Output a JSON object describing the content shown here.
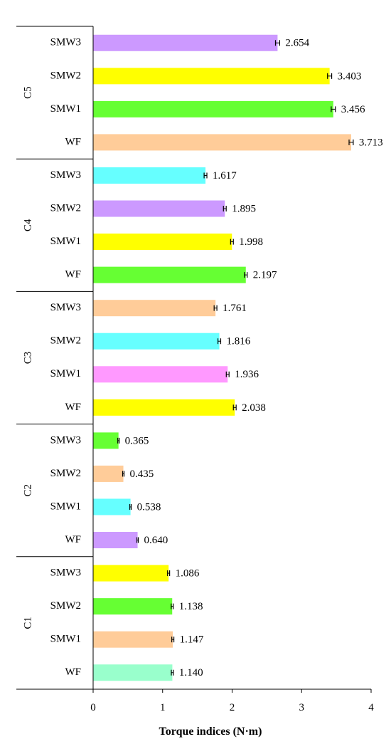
{
  "chart_data": {
    "type": "bar",
    "orientation": "horizontal",
    "xlabel": "Torque indices (N·m)",
    "xlim": [
      0,
      4
    ],
    "xticks": [
      "0",
      "1",
      "2",
      "3",
      "4"
    ],
    "grid": false,
    "groups": [
      {
        "name": "C5",
        "bars": [
          {
            "label": "SMW3",
            "value": 2.654,
            "value_label": "2.654",
            "error": 0.03,
            "color": "#CC99FF"
          },
          {
            "label": "SMW2",
            "value": 3.403,
            "value_label": "3.403",
            "error": 0.03,
            "color": "#FFFF00"
          },
          {
            "label": "SMW1",
            "value": 3.456,
            "value_label": "3.456",
            "error": 0.03,
            "color": "#66FF33"
          },
          {
            "label": "WF",
            "value": 3.713,
            "value_label": "3.713",
            "error": 0.03,
            "color": "#FFCC99"
          }
        ]
      },
      {
        "name": "C4",
        "bars": [
          {
            "label": "SMW3",
            "value": 1.617,
            "value_label": "1.617",
            "error": 0.02,
            "color": "#66FFFF"
          },
          {
            "label": "SMW2",
            "value": 1.895,
            "value_label": "1.895",
            "error": 0.02,
            "color": "#CC99FF"
          },
          {
            "label": "SMW1",
            "value": 1.998,
            "value_label": "1.998",
            "error": 0.02,
            "color": "#FFFF00"
          },
          {
            "label": "WF",
            "value": 2.197,
            "value_label": "2.197",
            "error": 0.02,
            "color": "#66FF33"
          }
        ]
      },
      {
        "name": "C3",
        "bars": [
          {
            "label": "SMW3",
            "value": 1.761,
            "value_label": "1.761",
            "error": 0.02,
            "color": "#FFCC99"
          },
          {
            "label": "SMW2",
            "value": 1.816,
            "value_label": "1.816",
            "error": 0.02,
            "color": "#66FFFF"
          },
          {
            "label": "SMW1",
            "value": 1.936,
            "value_label": "1.936",
            "error": 0.02,
            "color": "#FF99FF"
          },
          {
            "label": "WF",
            "value": 2.038,
            "value_label": "2.038",
            "error": 0.02,
            "color": "#FFFF00"
          }
        ]
      },
      {
        "name": "C2",
        "bars": [
          {
            "label": "SMW3",
            "value": 0.365,
            "value_label": "0.365",
            "error": 0.01,
            "color": "#66FF33"
          },
          {
            "label": "SMW2",
            "value": 0.435,
            "value_label": "0.435",
            "error": 0.01,
            "color": "#FFCC99"
          },
          {
            "label": "SMW1",
            "value": 0.538,
            "value_label": "0.538",
            "error": 0.01,
            "color": "#66FFFF"
          },
          {
            "label": "WF",
            "value": 0.64,
            "value_label": "0.640",
            "error": 0.01,
            "color": "#CC99FF"
          }
        ]
      },
      {
        "name": "C1",
        "bars": [
          {
            "label": "SMW3",
            "value": 1.086,
            "value_label": "1.086",
            "error": 0.015,
            "color": "#FFFF00"
          },
          {
            "label": "SMW2",
            "value": 1.138,
            "value_label": "1.138",
            "error": 0.015,
            "color": "#66FF33"
          },
          {
            "label": "SMW1",
            "value": 1.147,
            "value_label": "1.147",
            "error": 0.015,
            "color": "#FFCC99"
          },
          {
            "label": "WF",
            "value": 1.14,
            "value_label": "1.140",
            "error": 0.015,
            "color": "#99FFCC"
          }
        ]
      }
    ]
  }
}
